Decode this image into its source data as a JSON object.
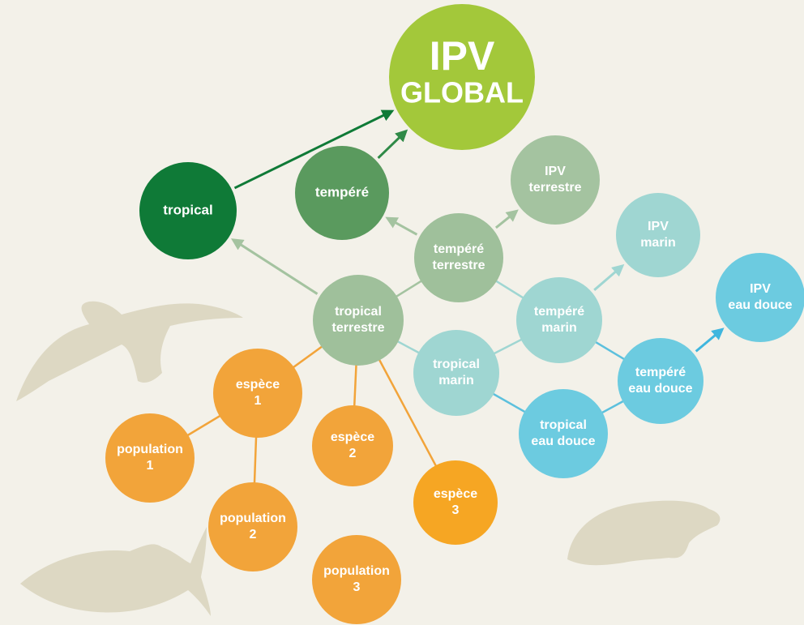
{
  "nodes": [
    {
      "label": [
        "IPV",
        "GLOBAL"
      ]
    },
    {
      "label": [
        "tropical"
      ]
    },
    {
      "label": [
        "tempéré"
      ]
    },
    {
      "label": [
        "IPV",
        "terrestre"
      ]
    },
    {
      "label": [
        "tempéré",
        "terrestre"
      ]
    },
    {
      "label": [
        "tropical",
        "terrestre"
      ]
    },
    {
      "label": [
        "IPV",
        "marin"
      ]
    },
    {
      "label": [
        "tempéré",
        "marin"
      ]
    },
    {
      "label": [
        "tropical",
        "marin"
      ]
    },
    {
      "label": [
        "IPV",
        "eau douce"
      ]
    },
    {
      "label": [
        "tempéré",
        "eau douce"
      ]
    },
    {
      "label": [
        "tropical",
        "eau douce"
      ]
    },
    {
      "label": [
        "espèce",
        "1"
      ]
    },
    {
      "label": [
        "espèce",
        "2"
      ]
    },
    {
      "label": [
        "espèce",
        "3"
      ]
    },
    {
      "label": [
        "population",
        "1"
      ]
    },
    {
      "label": [
        "population",
        "2"
      ]
    },
    {
      "label": [
        "population",
        "3"
      ]
    }
  ]
}
